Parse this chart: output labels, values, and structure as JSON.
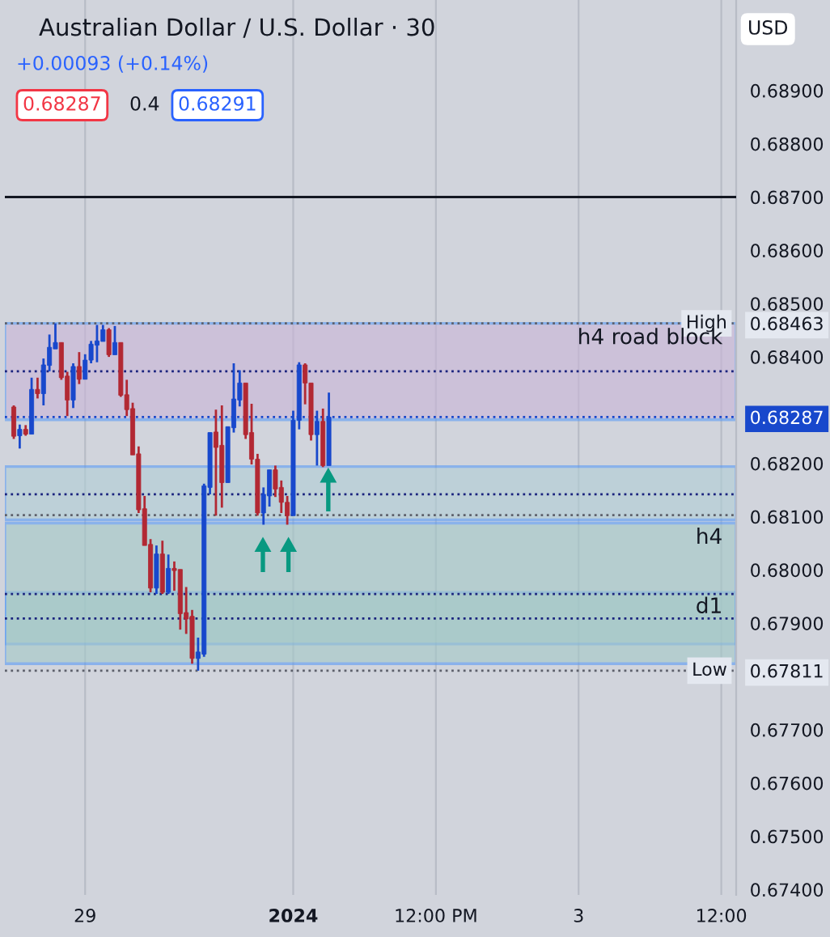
{
  "chart_data": {
    "type": "candlestick",
    "title": "Australian Dollar / U.S. Dollar · 30",
    "subtitle": "+0.00093 (+0.14%)",
    "annotations": [
      "0.68287",
      "0.4",
      "0.68291",
      "USD"
    ],
    "categories": [
      null,
      null,
      null,
      null,
      null,
      null,
      null,
      null,
      null,
      null,
      null,
      null,
      "29",
      null,
      null,
      null,
      null,
      null,
      null,
      null,
      null,
      null,
      null,
      null,
      null,
      null,
      null,
      null,
      null,
      null,
      null,
      null,
      null,
      null,
      null,
      null,
      null,
      null,
      null,
      null,
      null,
      null,
      null,
      null,
      null,
      null,
      null,
      "2024",
      null,
      null,
      null,
      null,
      null,
      null,
      null,
      null,
      null,
      null,
      null,
      null,
      null,
      null,
      null,
      null,
      null,
      null,
      null,
      null,
      null,
      null,
      null,
      "12:00 PM",
      null,
      null,
      null,
      null,
      null,
      null,
      null,
      null,
      null,
      null,
      null,
      null,
      null,
      null,
      null,
      null,
      null,
      null,
      null,
      null,
      null,
      null,
      null,
      "3",
      null,
      null,
      null,
      null,
      null,
      null,
      null,
      null,
      null,
      null,
      null,
      null,
      null,
      null,
      null,
      null,
      null,
      null,
      null,
      null,
      null,
      null,
      null,
      "12:00"
    ],
    "ohlc": [
      [
        0.68306,
        0.68309,
        0.68246,
        0.68251
      ],
      [
        0.68252,
        0.68273,
        0.68228,
        0.68264
      ],
      [
        0.68264,
        0.68272,
        0.68252,
        0.68255
      ],
      [
        0.68255,
        0.68361,
        0.68255,
        0.68339
      ],
      [
        0.68339,
        0.68361,
        0.68322,
        0.68331
      ],
      [
        0.68331,
        0.68397,
        0.68309,
        0.68385
      ],
      [
        0.68384,
        0.68442,
        0.68373,
        0.68418
      ],
      [
        0.68415,
        0.68463,
        0.68415,
        0.68427
      ],
      [
        0.68427,
        0.68427,
        0.68357,
        0.68361
      ],
      [
        0.68364,
        0.68372,
        0.68289,
        0.68319
      ],
      [
        0.68319,
        0.68388,
        0.68304,
        0.68382
      ],
      [
        0.68382,
        0.68409,
        0.68349,
        0.68358
      ],
      [
        0.68358,
        0.68405,
        0.68358,
        0.68394
      ],
      [
        0.68394,
        0.6843,
        0.68388,
        0.68424
      ],
      [
        0.68422,
        0.6846,
        0.6839,
        0.6843
      ],
      [
        0.68429,
        0.6846,
        0.68429,
        0.68451
      ],
      [
        0.68451,
        0.68454,
        0.684,
        0.68404
      ],
      [
        0.68404,
        0.68458,
        0.68404,
        0.68427
      ],
      [
        0.68427,
        0.68427,
        0.68325,
        0.68328
      ],
      [
        0.68329,
        0.68357,
        0.68289,
        0.68301
      ],
      [
        0.68303,
        0.68314,
        0.68216,
        0.68216
      ],
      [
        0.68218,
        0.68232,
        0.68107,
        0.68113
      ],
      [
        0.68115,
        0.68139,
        0.68046,
        0.68046
      ],
      [
        0.68048,
        0.68058,
        0.67958,
        0.67966
      ],
      [
        0.67966,
        0.68046,
        0.67955,
        0.6803
      ],
      [
        0.6803,
        0.68055,
        0.67955,
        0.67958
      ],
      [
        0.67958,
        0.68029,
        0.67955,
        0.68003
      ],
      [
        0.68003,
        0.68016,
        0.67961,
        0.67999
      ],
      [
        0.68001,
        0.68001,
        0.67888,
        0.67918
      ],
      [
        0.6792,
        0.67968,
        0.6788,
        0.67908
      ],
      [
        0.67913,
        0.67925,
        0.67824,
        0.67834
      ],
      [
        0.67834,
        0.67873,
        0.67811,
        0.67846
      ],
      [
        0.67842,
        0.68162,
        0.67837,
        0.68158
      ],
      [
        0.68155,
        0.68258,
        0.68142,
        0.68258
      ],
      [
        0.68259,
        0.68301,
        0.68102,
        0.6823
      ],
      [
        0.68234,
        0.68309,
        0.68117,
        0.68164
      ],
      [
        0.68164,
        0.68269,
        0.68164,
        0.68269
      ],
      [
        0.68267,
        0.68388,
        0.68258,
        0.68321
      ],
      [
        0.68319,
        0.68375,
        0.68307,
        0.68351
      ],
      [
        0.68351,
        0.68351,
        0.68246,
        0.68254
      ],
      [
        0.68258,
        0.68312,
        0.68198,
        0.68208
      ],
      [
        0.68208,
        0.68218,
        0.68102,
        0.68107
      ],
      [
        0.68107,
        0.68155,
        0.68085,
        0.68142
      ],
      [
        0.68139,
        0.68188,
        0.68119,
        0.68188
      ],
      [
        0.68188,
        0.68196,
        0.68137,
        0.68152
      ],
      [
        0.68155,
        0.68168,
        0.68107,
        0.68127
      ],
      [
        0.68127,
        0.68139,
        0.68085,
        0.68102
      ],
      [
        0.68102,
        0.68299,
        0.68102,
        0.68281
      ],
      [
        0.68281,
        0.6839,
        0.68264,
        0.68385
      ],
      [
        0.68385,
        0.68388,
        0.68311,
        0.68351
      ],
      [
        0.68351,
        0.68351,
        0.68243,
        0.68254
      ],
      [
        0.68254,
        0.68299,
        0.68196,
        0.68279
      ],
      [
        0.68279,
        0.68303,
        0.68193,
        0.68196
      ],
      [
        0.68196,
        0.68333,
        0.68196,
        0.68287
      ],
      null,
      null,
      null,
      null,
      null,
      null,
      null,
      null,
      null,
      null,
      null,
      null,
      null,
      null,
      null,
      null,
      null,
      null,
      null,
      null,
      null,
      null,
      null,
      null,
      null,
      null,
      null,
      null,
      null,
      null,
      null,
      null,
      null,
      null,
      null,
      null,
      null,
      null,
      null,
      null,
      null,
      null,
      null,
      null,
      null,
      null,
      null,
      null,
      null,
      null,
      null,
      null,
      null,
      null,
      null,
      null,
      null,
      null,
      null,
      null,
      null,
      null,
      null,
      null,
      null,
      null
    ],
    "colors": [
      "#b22833",
      "#1848cc",
      "#b22833",
      "#1848cc",
      "#b22833",
      "#1848cc",
      "#1848cc",
      "#1848cc",
      "#b22833",
      "#b22833",
      "#1848cc",
      "#b22833",
      "#1848cc",
      "#1848cc",
      "#1848cc",
      "#1848cc",
      "#b22833",
      "#1848cc",
      "#b22833",
      "#b22833",
      "#b22833",
      "#b22833",
      "#b22833",
      "#b22833",
      "#1848cc",
      "#b22833",
      "#1848cc",
      "#b22833",
      "#b22833",
      "#b22833",
      "#b22833",
      "#1848cc",
      "#1848cc",
      "#1848cc",
      "#b22833",
      "#b22833",
      "#1848cc",
      "#1848cc",
      "#1848cc",
      "#b22833",
      "#b22833",
      "#b22833",
      "#1848cc",
      "#1848cc",
      "#b22833",
      "#b22833",
      "#b22833",
      "#1848cc",
      "#1848cc",
      "#b22833",
      "#b22833",
      "#1848cc",
      "#b22833",
      "#1848cc",
      null,
      null,
      null,
      null,
      null,
      null,
      null,
      null,
      null,
      null,
      null,
      null,
      null,
      null,
      null,
      null,
      null,
      null,
      null,
      null,
      null,
      null,
      null,
      null,
      null,
      null,
      null,
      null,
      null,
      null,
      null,
      null,
      null,
      null,
      null,
      null,
      null,
      null,
      null,
      null,
      null,
      null,
      null,
      null,
      null,
      null,
      null,
      null,
      null,
      null,
      null,
      null,
      null,
      null,
      null,
      null,
      null,
      null,
      null,
      null,
      null,
      null,
      null,
      null,
      null,
      null
    ],
    "bands": [
      {
        "axis": "y",
        "from": 0.67861,
        "to": 0.67958,
        "label": "d1",
        "color": "#a3c9c8"
      },
      {
        "axis": "y",
        "from": 0.67824,
        "to": 0.68088,
        "label": "h4",
        "color": "#a3c9c8"
      },
      {
        "axis": "y",
        "from": 0.68094,
        "to": 0.68194,
        "color": "#b0cfd6"
      },
      {
        "axis": "y",
        "from": 0.68282,
        "to": 0.68463,
        "label": "h4 road block",
        "color": "#c9b5d8"
      }
    ],
    "ref_lines": [
      {
        "axis": "y",
        "value": 0.687,
        "color": "#131722",
        "line_style": "solid"
      },
      {
        "axis": "y",
        "value": 0.68463,
        "label": "High",
        "color": "#5d606b",
        "line_style": "dotted"
      },
      {
        "axis": "y",
        "value": 0.67811,
        "label": "Low",
        "color": "#5d606b",
        "line_style": "dotted"
      },
      {
        "axis": "y",
        "value": 0.68287,
        "color": "#1848cc",
        "line_style": "dotted"
      },
      {
        "axis": "y",
        "value": 0.68373,
        "color": "#1a237e",
        "line_style": "dotted"
      },
      {
        "axis": "y",
        "value": 0.68103,
        "color": "#5d606b",
        "line_style": "dotted"
      },
      {
        "axis": "y",
        "value": 0.68142,
        "color": "#1a237e",
        "line_style": "dotted"
      },
      {
        "axis": "y",
        "value": 0.67955,
        "color": "#1a237e",
        "line_style": "dotted"
      },
      {
        "axis": "y",
        "value": 0.67909,
        "color": "#1a237e",
        "line_style": "dotted"
      }
    ],
    "ylim": [
      0.6739,
      0.6907
    ],
    "yticks": [
      {
        "value": 0.674,
        "label": "0.67400"
      },
      {
        "value": 0.675,
        "label": "0.67500"
      },
      {
        "value": 0.676,
        "label": "0.67600"
      },
      {
        "value": 0.677,
        "label": "0.67700"
      },
      {
        "value": 0.67811,
        "label": "0.67811"
      },
      {
        "value": 0.679,
        "label": "0.67900"
      },
      {
        "value": 0.68,
        "label": "0.68000"
      },
      {
        "value": 0.681,
        "label": "0.68100"
      },
      {
        "value": 0.682,
        "label": "0.68200"
      },
      {
        "value": 0.68287,
        "label": "0.68287"
      },
      {
        "value": 0.684,
        "label": "0.68400"
      },
      {
        "value": 0.68463,
        "label": "0.68463"
      },
      {
        "value": 0.685,
        "label": "0.68500"
      },
      {
        "value": 0.686,
        "label": "0.68600"
      },
      {
        "value": 0.687,
        "label": "0.68700"
      },
      {
        "value": 0.688,
        "label": "0.68800"
      },
      {
        "value": 0.689,
        "label": "0.68900"
      }
    ],
    "grid": "x",
    "legend": false
  }
}
